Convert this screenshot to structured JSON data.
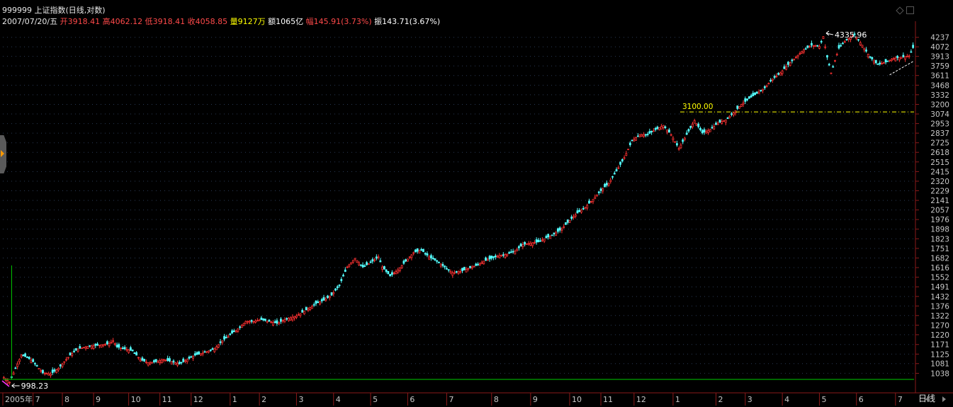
{
  "header": {
    "code": "999999",
    "name": "上证指数",
    "mode": "(日线,对数)"
  },
  "info_bar": {
    "date": "2007/07/20/五",
    "open_label": "开",
    "open": "3918.41",
    "high_label": "高",
    "high": "4062.12",
    "low_label": "低",
    "low": "3918.41",
    "close_label": "收",
    "close": "4058.85",
    "volume_label": "量",
    "volume": "9127万",
    "amount_label": "额",
    "amount": "1065亿",
    "change_label": "幅",
    "change": "145.91(3.73%)",
    "amplitude_label": "振",
    "amplitude": "143.71(3.67%)"
  },
  "period_label": "日线",
  "colors": {
    "up": "#ff3232",
    "down": "#54ffff",
    "guide": "#ffff00",
    "baseline": "#00cc00",
    "grid": "#2a3a55"
  },
  "chart_data": {
    "type": "candlestick",
    "title": "999999 上证指数(日线,对数)",
    "y_scale": "log",
    "ylim": [
      1000,
      4400
    ],
    "y_ticks": [
      "4237",
      "4072",
      "3913",
      "3759",
      "3611",
      "3468",
      "3332",
      "3200",
      "3074",
      "2953",
      "2837",
      "2725",
      "2618",
      "2515",
      "2415",
      "2320",
      "2229",
      "2141",
      "2057",
      "1976",
      "1898",
      "1823",
      "1751",
      "1682",
      "1616",
      "1552",
      "1491",
      "1432",
      "1376",
      "1322",
      "1270",
      "1220",
      "1171",
      "1125",
      "1081",
      "1038"
    ],
    "x_ticks": [
      "2005年",
      "7",
      "8",
      "9",
      "10",
      "11",
      "12",
      "1",
      "2",
      "3",
      "4",
      "5",
      "6",
      "7",
      "8",
      "9",
      "10",
      "11",
      "12",
      "1",
      "2",
      "3",
      "4",
      "5",
      "6",
      "7"
    ],
    "x_tick_index": [
      0,
      15,
      30,
      46,
      64,
      80,
      96,
      116,
      131,
      150,
      169,
      188,
      207,
      227,
      250,
      270,
      290,
      306,
      323,
      343,
      365,
      380,
      399,
      418,
      437,
      457
    ],
    "trend_points": [
      [
        0,
        1020
      ],
      [
        3,
        1000
      ],
      [
        6,
        1060
      ],
      [
        9,
        1120
      ],
      [
        12,
        1110
      ],
      [
        15,
        1090
      ],
      [
        20,
        1040
      ],
      [
        24,
        1035
      ],
      [
        28,
        1060
      ],
      [
        30,
        1080
      ],
      [
        34,
        1120
      ],
      [
        38,
        1150
      ],
      [
        42,
        1160
      ],
      [
        46,
        1165
      ],
      [
        50,
        1170
      ],
      [
        54,
        1175
      ],
      [
        56,
        1190
      ],
      [
        58,
        1160
      ],
      [
        62,
        1150
      ],
      [
        66,
        1140
      ],
      [
        70,
        1100
      ],
      [
        74,
        1085
      ],
      [
        78,
        1090
      ],
      [
        82,
        1100
      ],
      [
        86,
        1090
      ],
      [
        90,
        1080
      ],
      [
        94,
        1100
      ],
      [
        98,
        1120
      ],
      [
        102,
        1130
      ],
      [
        108,
        1150
      ],
      [
        112,
        1190
      ],
      [
        116,
        1220
      ],
      [
        120,
        1250
      ],
      [
        124,
        1290
      ],
      [
        128,
        1290
      ],
      [
        132,
        1300
      ],
      [
        136,
        1290
      ],
      [
        140,
        1280
      ],
      [
        144,
        1300
      ],
      [
        150,
        1320
      ],
      [
        156,
        1360
      ],
      [
        160,
        1390
      ],
      [
        164,
        1410
      ],
      [
        168,
        1440
      ],
      [
        172,
        1500
      ],
      [
        176,
        1620
      ],
      [
        180,
        1680
      ],
      [
        184,
        1620
      ],
      [
        188,
        1650
      ],
      [
        192,
        1690
      ],
      [
        194,
        1620
      ],
      [
        198,
        1560
      ],
      [
        202,
        1600
      ],
      [
        206,
        1660
      ],
      [
        210,
        1720
      ],
      [
        214,
        1740
      ],
      [
        218,
        1690
      ],
      [
        222,
        1660
      ],
      [
        226,
        1620
      ],
      [
        230,
        1580
      ],
      [
        234,
        1590
      ],
      [
        238,
        1610
      ],
      [
        242,
        1630
      ],
      [
        246,
        1660
      ],
      [
        250,
        1680
      ],
      [
        254,
        1700
      ],
      [
        258,
        1710
      ],
      [
        262,
        1730
      ],
      [
        266,
        1780
      ],
      [
        270,
        1790
      ],
      [
        274,
        1800
      ],
      [
        278,
        1830
      ],
      [
        282,
        1860
      ],
      [
        286,
        1900
      ],
      [
        290,
        1970
      ],
      [
        294,
        2030
      ],
      [
        298,
        2080
      ],
      [
        302,
        2150
      ],
      [
        306,
        2230
      ],
      [
        310,
        2300
      ],
      [
        314,
        2420
      ],
      [
        318,
        2560
      ],
      [
        322,
        2750
      ],
      [
        326,
        2820
      ],
      [
        330,
        2820
      ],
      [
        334,
        2880
      ],
      [
        338,
        2930
      ],
      [
        342,
        2820
      ],
      [
        346,
        2660
      ],
      [
        350,
        2820
      ],
      [
        354,
        2990
      ],
      [
        358,
        2840
      ],
      [
        362,
        2880
      ],
      [
        366,
        2960
      ],
      [
        370,
        3000
      ],
      [
        374,
        3090
      ],
      [
        378,
        3200
      ],
      [
        382,
        3280
      ],
      [
        386,
        3350
      ],
      [
        390,
        3430
      ],
      [
        394,
        3560
      ],
      [
        398,
        3650
      ],
      [
        402,
        3780
      ],
      [
        406,
        3900
      ],
      [
        410,
        4020
      ],
      [
        414,
        4100
      ],
      [
        418,
        4080
      ],
      [
        420,
        4250
      ],
      [
        422,
        3900
      ],
      [
        424,
        3650
      ],
      [
        428,
        4050
      ],
      [
        432,
        4200
      ],
      [
        436,
        4280
      ],
      [
        440,
        4100
      ],
      [
        444,
        3900
      ],
      [
        448,
        3780
      ],
      [
        452,
        3820
      ],
      [
        456,
        3880
      ],
      [
        460,
        3900
      ],
      [
        464,
        3920
      ],
      [
        466,
        4058
      ]
    ],
    "high_marker": {
      "label": "4335.96",
      "value": 4335.96,
      "index": 420
    },
    "low_marker": {
      "label": "998.23",
      "value": 998.23,
      "index": 3
    },
    "guide_line": {
      "label": "3100.00",
      "value": 3100
    },
    "volume_spike_index": 4
  }
}
